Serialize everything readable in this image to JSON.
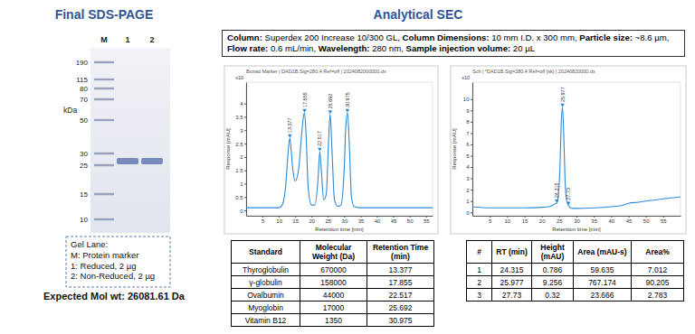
{
  "gel": {
    "title": "Final SDS-PAGE",
    "lanes": [
      "M",
      "1",
      "2"
    ],
    "unit": "kDa",
    "markers": [
      190,
      115,
      80,
      70,
      50,
      30,
      25,
      15,
      10
    ],
    "legend_title": "Gel Lane:",
    "legend_items": [
      "M: Protein marker",
      "1: Reduced, 2 µg",
      "2: Non-Reduced, 2 µg"
    ],
    "expected_mw": "Expected Mol wt: 26081.61 Da"
  },
  "sec": {
    "title": "Analytical SEC",
    "conditions": [
      {
        "label": "Column:",
        "value": "Superdex 200 Increase 10/300 GL,"
      },
      {
        "label": "Column Dimensions:",
        "value": "10 mm I.D. x 300 mm,"
      },
      {
        "label": "Particle size:",
        "value": "~8.6 µm,"
      },
      {
        "label": "Flow rate:",
        "value": "0.6 mL/min,"
      },
      {
        "label": "Wavelength:",
        "value": "280 nm,"
      },
      {
        "label": "Sample injection volume:",
        "value": "20 µL"
      }
    ],
    "standards_table": {
      "columns": [
        "Standard",
        "Molecular Weight (Da)",
        "Retention Time (min)"
      ],
      "rows": [
        [
          "Thyroglobulin",
          670000,
          13.377
        ],
        [
          "γ-globulin",
          158000,
          17.855
        ],
        [
          "Ovalbumin",
          44000,
          22.517
        ],
        [
          "Myoglobin",
          17000,
          25.692
        ],
        [
          "Vitamin B12",
          1350,
          30.975
        ]
      ]
    },
    "sample_table": {
      "columns": [
        "#",
        "RT (min)",
        "Height (mAU)",
        "Area (mAU-s)",
        "Area%"
      ],
      "rows": [
        [
          1,
          24.315,
          0.786,
          59.635,
          7.012
        ],
        [
          2,
          25.977,
          9.256,
          767.174,
          90.205
        ],
        [
          3,
          27.73,
          0.32,
          23.666,
          2.783
        ]
      ]
    }
  },
  "chart_data": [
    {
      "type": "line",
      "title": "Biorad Marker | DAD1B,Sig=280,4 Ref=off | 2024082000000.dx",
      "xlabel": "Retention time [min]",
      "ylabel": "Response [mAU]",
      "y_scale_label": "x10",
      "color": "#2b8ad8",
      "marker": "triangle",
      "grid": false,
      "x": [
        0,
        5,
        10,
        11,
        12,
        12.5,
        13,
        13.377,
        13.8,
        14.3,
        15,
        16,
        17,
        17.5,
        17.855,
        18.3,
        19,
        20,
        21,
        22,
        22.517,
        23,
        23.7,
        24.5,
        25.2,
        25.692,
        26.2,
        27,
        28,
        29,
        30,
        30.5,
        30.975,
        31.5,
        32.2,
        33,
        35,
        40,
        45,
        50,
        55,
        57
      ],
      "values": [
        0.1,
        0.1,
        0.1,
        0.2,
        0.8,
        1.6,
        2.4,
        2.7,
        2.2,
        1.5,
        1.1,
        1.5,
        2.9,
        3.5,
        3.65,
        2.9,
        0.8,
        0.2,
        0.2,
        1.2,
        2.2,
        1.5,
        0.4,
        0.6,
        2.6,
        3.6,
        2.4,
        0.4,
        0.15,
        0.2,
        1.6,
        3.2,
        3.65,
        2.6,
        0.5,
        0.15,
        0.1,
        0.1,
        0.1,
        0.1,
        0.1,
        0.1
      ],
      "xlim": [
        0,
        57
      ],
      "ylim": [
        -0.2,
        4.8
      ],
      "xticks": [
        5,
        10,
        15,
        20,
        25,
        30,
        35,
        40,
        45,
        50,
        55
      ],
      "yticks": [
        0,
        0.5,
        1,
        1.5,
        2,
        2.5,
        3,
        3.5,
        4
      ],
      "annotations": [
        {
          "x": 13.377,
          "y": 2.7,
          "text": "13.377"
        },
        {
          "x": 17.855,
          "y": 3.65,
          "text": "17.855"
        },
        {
          "x": 22.517,
          "y": 2.2,
          "text": "22.517"
        },
        {
          "x": 25.692,
          "y": 3.6,
          "text": "25.692"
        },
        {
          "x": 30.975,
          "y": 3.65,
          "text": "30.975"
        }
      ]
    },
    {
      "type": "line",
      "title": "Sch | *DAD1B,Sig=280,4 Ref=off [sk] | 20240820000.dx",
      "xlabel": "Retention time [min]",
      "ylabel": "Response [mAU]",
      "y_scale_label": "x10",
      "color": "#2b8ad8",
      "marker": "triangle",
      "grid": false,
      "x": [
        0,
        5,
        10,
        15,
        20,
        22,
        23,
        23.8,
        24.315,
        24.8,
        25.3,
        25.6,
        25.977,
        26.3,
        26.7,
        27.2,
        27.73,
        28.3,
        29,
        30,
        35,
        40,
        43,
        45,
        48,
        50,
        53,
        55,
        58,
        60
      ],
      "values": [
        0.5,
        0.4,
        0.4,
        0.4,
        0.45,
        0.5,
        0.6,
        0.75,
        0.8,
        1.5,
        4.5,
        7.8,
        9.26,
        7.2,
        3.0,
        1.0,
        0.6,
        0.4,
        0.35,
        0.35,
        0.4,
        0.5,
        0.6,
        0.8,
        0.9,
        1.0,
        1.1,
        1.2,
        1.3,
        1.35
      ],
      "xlim": [
        0,
        60
      ],
      "ylim": [
        -0.3,
        11.5
      ],
      "xticks": [
        5,
        10,
        15,
        20,
        25,
        30,
        35,
        40,
        45,
        50,
        55
      ],
      "yticks": [
        0,
        1,
        2,
        3,
        4,
        5,
        6,
        7,
        8,
        9,
        10
      ],
      "annotations": [
        {
          "x": 25.977,
          "y": 9.26,
          "text": "25.977"
        },
        {
          "x": 24.315,
          "y": 0.8,
          "text": "24.315"
        },
        {
          "x": 27.73,
          "y": 0.6,
          "text": "27.73"
        }
      ]
    }
  ]
}
